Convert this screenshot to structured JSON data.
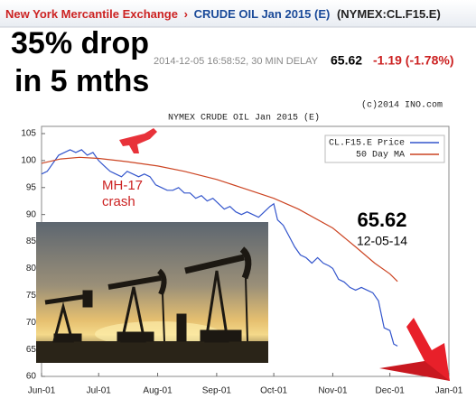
{
  "header": {
    "exchange": "New York Mercantile Exchange",
    "separator": "›",
    "contract": "CRUDE OIL Jan 2015 (E)",
    "symbol": "(NYMEX:CL.F15.E)",
    "timestamp": "2014-12-05 16:58:52, 30 MIN DELAY",
    "last": "65.62",
    "change": "-1.19 (-1.78%)"
  },
  "overlay": {
    "headline_1": "35% drop",
    "headline_2": "in 5 mths",
    "event_1": "MH-17",
    "event_2": "crash",
    "price": "65.62",
    "date": "12-05-14"
  },
  "chart_data": {
    "type": "line",
    "title": "NYMEX CRUDE OIL Jan 2015 (E)",
    "copyright": "(c)2014 INO.com",
    "xlim": [
      0,
      214
    ],
    "xticks": [
      {
        "value": 0,
        "label": "Jun-01"
      },
      {
        "value": 30,
        "label": "Jul-01"
      },
      {
        "value": 61,
        "label": "Aug-01"
      },
      {
        "value": 92,
        "label": "Sep-01"
      },
      {
        "value": 122,
        "label": "Oct-01"
      },
      {
        "value": 153,
        "label": "Nov-01"
      },
      {
        "value": 183,
        "label": "Dec-01"
      },
      {
        "value": 214,
        "label": "Jan-01"
      }
    ],
    "ylim": [
      60,
      105
    ],
    "yticks": [
      60,
      65,
      70,
      75,
      80,
      85,
      90,
      95,
      100,
      105
    ],
    "grid": false,
    "legend": "top-right",
    "series": [
      {
        "name": "CL.F15.E Price",
        "color": "#3355cc",
        "x": [
          0,
          3,
          6,
          9,
          12,
          15,
          18,
          21,
          24,
          27,
          30,
          33,
          36,
          39,
          42,
          45,
          48,
          51,
          54,
          57,
          60,
          63,
          66,
          69,
          72,
          75,
          78,
          81,
          84,
          87,
          90,
          93,
          96,
          99,
          102,
          105,
          108,
          111,
          114,
          117,
          120,
          122,
          124,
          127,
          130,
          133,
          136,
          139,
          142,
          145,
          148,
          151,
          153,
          156,
          159,
          162,
          165,
          168,
          171,
          174,
          177,
          180,
          183,
          185,
          187
        ],
        "values": [
          97.5,
          98,
          99.5,
          101,
          101.5,
          102,
          101.5,
          102,
          101,
          101.5,
          100,
          99,
          98,
          97.5,
          97,
          98,
          97.5,
          97,
          97.5,
          97,
          95.5,
          95,
          94.5,
          94.5,
          95,
          94,
          94,
          93,
          93.5,
          92.5,
          93,
          92,
          91,
          91.5,
          90.5,
          90,
          90.5,
          90,
          89.5,
          90.5,
          91.5,
          92,
          89,
          88,
          86,
          84,
          82.5,
          82,
          81,
          82,
          81,
          80.5,
          80,
          78,
          77.5,
          76.5,
          76,
          76.5,
          76,
          75.5,
          74,
          69,
          68.5,
          66,
          65.62
        ]
      },
      {
        "name": "50 Day MA",
        "color": "#cc4422",
        "x": [
          0,
          10,
          20,
          30,
          45,
          61,
          75,
          92,
          105,
          122,
          135,
          153,
          165,
          175,
          183,
          187
        ],
        "values": [
          99.5,
          100.3,
          100.6,
          100.4,
          99.8,
          99,
          98,
          96.5,
          95,
          93,
          91,
          87.5,
          84,
          81,
          79,
          77.6
        ]
      }
    ]
  }
}
